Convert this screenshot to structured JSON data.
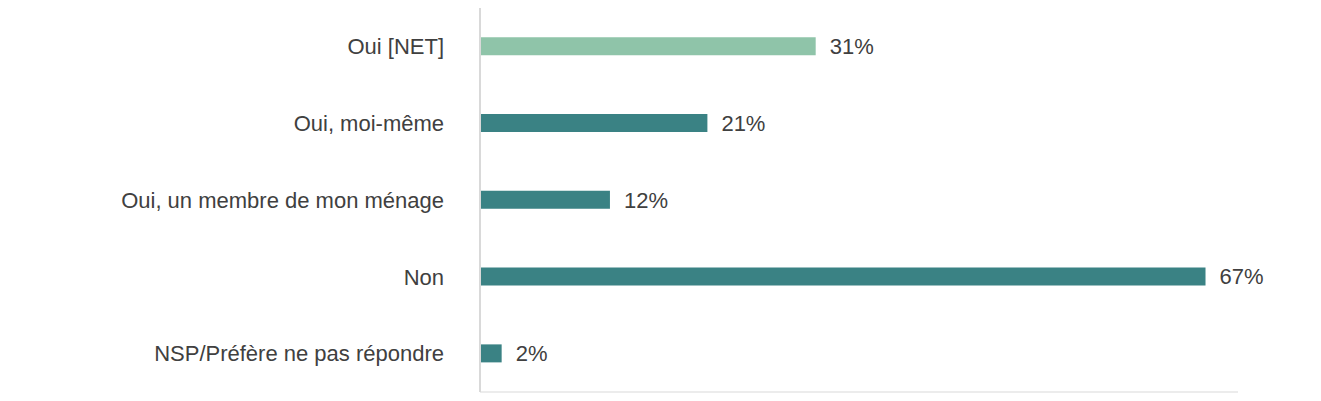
{
  "chart_data": {
    "type": "bar",
    "orientation": "horizontal",
    "categories": [
      "Oui [NET]",
      "Oui, moi-même",
      "Oui, un membre de mon ménage",
      "Non",
      "NSP/Préfère ne pas répondre"
    ],
    "values": [
      31,
      21,
      12,
      67,
      2
    ],
    "value_labels": [
      "31%",
      "21%",
      "12%",
      "67%",
      "2%"
    ],
    "colors": [
      "#8fc4a9",
      "#3a8284",
      "#3a8284",
      "#3a8284",
      "#3a8284"
    ],
    "xlim": [
      0,
      70
    ],
    "data_labels": true,
    "tick_labels": "y",
    "grid": false
  }
}
